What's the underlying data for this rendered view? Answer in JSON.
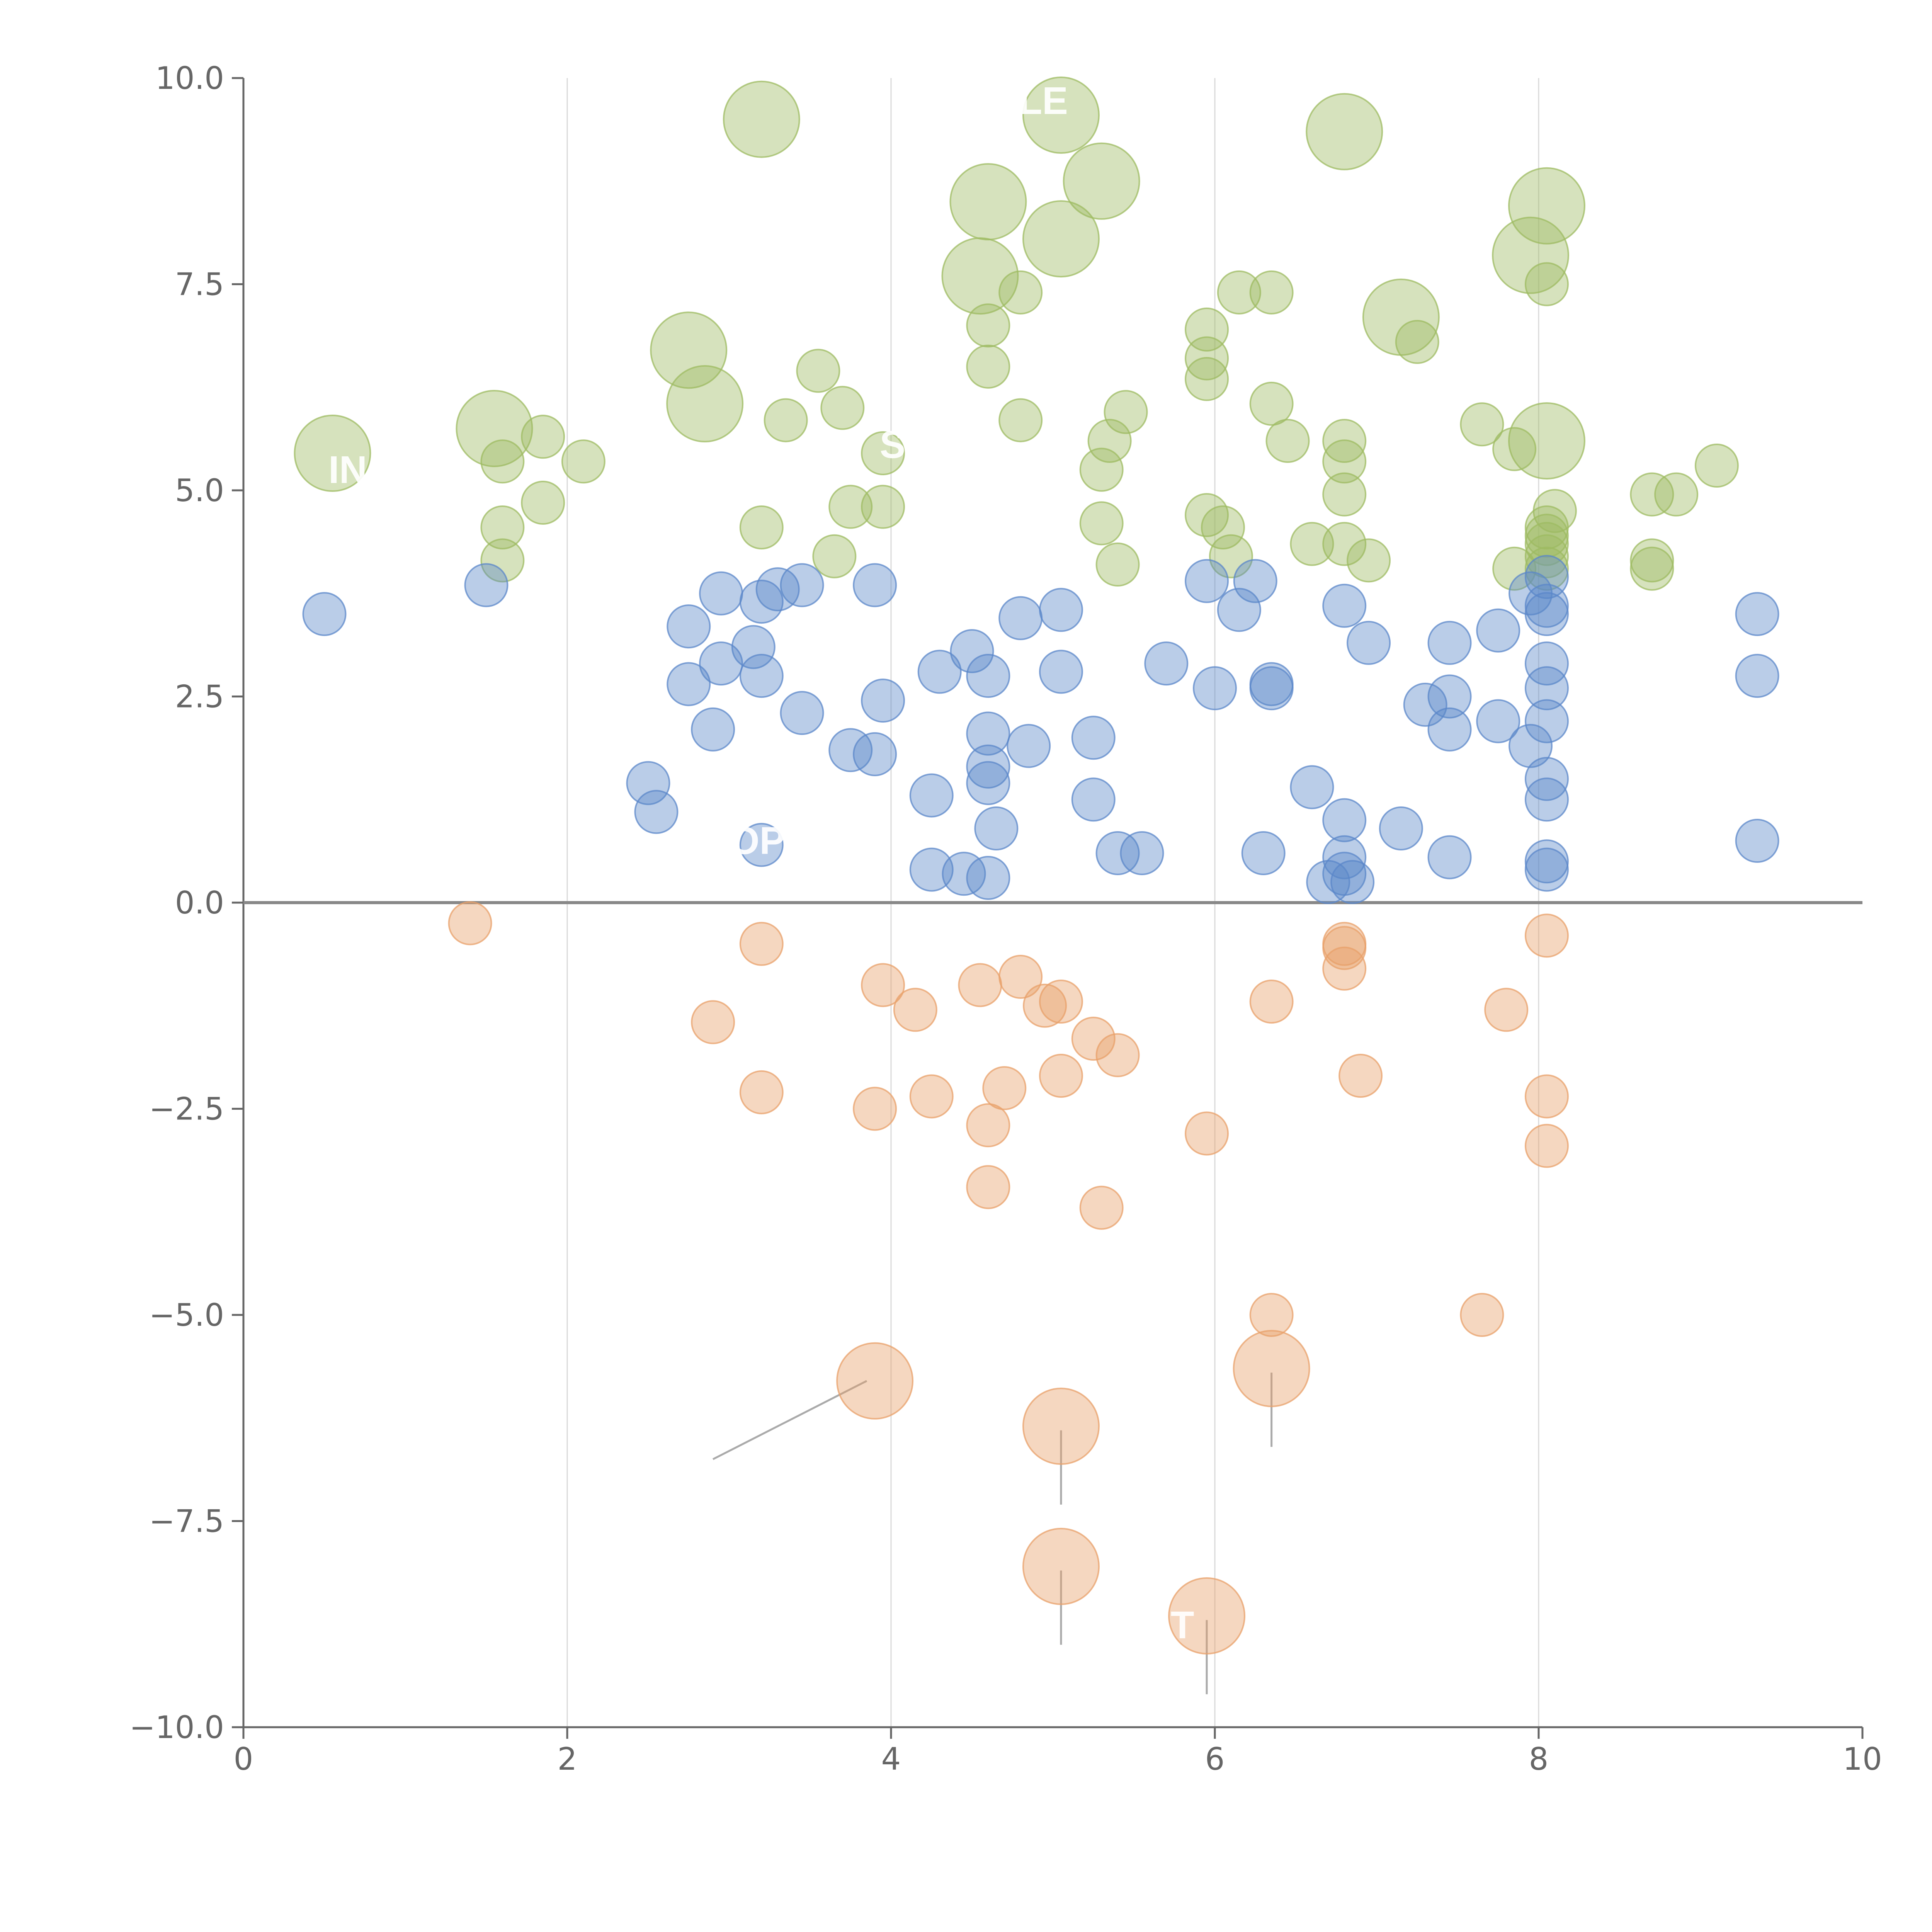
{
  "colors": {
    "positive_high": "#9dbb61",
    "positive": "#5b87c9",
    "negative": "#e8a06a",
    "axis": "#666666",
    "grid": "#d9d9d9",
    "zero_line": "#888888"
  },
  "chart_data": {
    "type": "scatter",
    "title": "",
    "xlabel": "",
    "ylabel": "",
    "xlim": [
      0,
      10
    ],
    "ylim": [
      -10,
      10
    ],
    "x_ticks": [
      "0",
      "2",
      "4",
      "6",
      "8",
      "10"
    ],
    "y_ticks": [
      "10.0",
      "7.5",
      "5.0",
      "2.5",
      "0.0",
      "−2.5",
      "−5.0",
      "−7.5",
      "−10.0"
    ],
    "grid_x": [
      2,
      4,
      6,
      8
    ],
    "zero_line": 0,
    "series": [
      {
        "name": "green",
        "color_key": "positive_high",
        "points": [
          {
            "x": 3.2,
            "y": 9.5,
            "size": "large"
          },
          {
            "x": 5.05,
            "y": 9.55,
            "size": "large"
          },
          {
            "x": 6.8,
            "y": 9.35,
            "size": "large"
          },
          {
            "x": 5.3,
            "y": 8.75,
            "size": "large"
          },
          {
            "x": 4.6,
            "y": 8.5,
            "size": "large"
          },
          {
            "x": 8.05,
            "y": 8.45,
            "size": "large"
          },
          {
            "x": 5.05,
            "y": 8.05,
            "size": "large"
          },
          {
            "x": 7.95,
            "y": 7.85,
            "size": "large"
          },
          {
            "x": 4.55,
            "y": 7.6,
            "size": "large"
          },
          {
            "x": 8.05,
            "y": 7.5,
            "size": "small"
          },
          {
            "x": 4.8,
            "y": 7.4,
            "size": "small"
          },
          {
            "x": 6.15,
            "y": 7.4,
            "size": "small"
          },
          {
            "x": 6.35,
            "y": 7.4,
            "size": "small"
          },
          {
            "x": 7.15,
            "y": 7.1,
            "size": "large"
          },
          {
            "x": 4.6,
            "y": 7.0,
            "size": "small"
          },
          {
            "x": 5.95,
            "y": 6.95,
            "size": "small"
          },
          {
            "x": 7.25,
            "y": 6.8,
            "size": "small"
          },
          {
            "x": 2.75,
            "y": 6.7,
            "size": "large"
          },
          {
            "x": 5.95,
            "y": 6.6,
            "size": "small"
          },
          {
            "x": 4.6,
            "y": 6.5,
            "size": "small"
          },
          {
            "x": 3.55,
            "y": 6.45,
            "size": "small"
          },
          {
            "x": 5.95,
            "y": 6.35,
            "size": "small"
          },
          {
            "x": 2.85,
            "y": 6.05,
            "size": "large"
          },
          {
            "x": 6.35,
            "y": 6.05,
            "size": "small"
          },
          {
            "x": 3.7,
            "y": 6.0,
            "size": "small"
          },
          {
            "x": 5.45,
            "y": 5.95,
            "size": "small"
          },
          {
            "x": 3.35,
            "y": 5.85,
            "size": "small"
          },
          {
            "x": 4.8,
            "y": 5.85,
            "size": "small"
          },
          {
            "x": 7.65,
            "y": 5.8,
            "size": "small"
          },
          {
            "x": 1.55,
            "y": 5.75,
            "size": "large"
          },
          {
            "x": 1.85,
            "y": 5.65,
            "size": "small"
          },
          {
            "x": 5.35,
            "y": 5.6,
            "size": "small"
          },
          {
            "x": 6.45,
            "y": 5.6,
            "size": "small"
          },
          {
            "x": 6.8,
            "y": 5.6,
            "size": "small"
          },
          {
            "x": 8.05,
            "y": 5.6,
            "size": "large"
          },
          {
            "x": 7.85,
            "y": 5.5,
            "size": "small"
          },
          {
            "x": 0.55,
            "y": 5.45,
            "size": "large"
          },
          {
            "x": 3.95,
            "y": 5.45,
            "size": "small"
          },
          {
            "x": 1.6,
            "y": 5.35,
            "size": "small"
          },
          {
            "x": 2.1,
            "y": 5.35,
            "size": "small"
          },
          {
            "x": 6.8,
            "y": 5.35,
            "size": "small"
          },
          {
            "x": 9.1,
            "y": 5.3,
            "size": "small"
          },
          {
            "x": 5.3,
            "y": 5.25,
            "size": "small"
          },
          {
            "x": 6.8,
            "y": 4.95,
            "size": "small"
          },
          {
            "x": 8.7,
            "y": 4.95,
            "size": "small"
          },
          {
            "x": 8.85,
            "y": 4.95,
            "size": "small"
          },
          {
            "x": 1.85,
            "y": 4.85,
            "size": "small"
          },
          {
            "x": 3.75,
            "y": 4.8,
            "size": "small"
          },
          {
            "x": 3.95,
            "y": 4.8,
            "size": "small"
          },
          {
            "x": 8.1,
            "y": 4.75,
            "size": "small"
          },
          {
            "x": 5.95,
            "y": 4.7,
            "size": "small"
          },
          {
            "x": 1.6,
            "y": 4.55,
            "size": "small"
          },
          {
            "x": 3.2,
            "y": 4.55,
            "size": "small"
          },
          {
            "x": 5.3,
            "y": 4.6,
            "size": "small"
          },
          {
            "x": 6.05,
            "y": 4.55,
            "size": "small"
          },
          {
            "x": 8.05,
            "y": 4.55,
            "size": "small"
          },
          {
            "x": 8.05,
            "y": 4.45,
            "size": "small"
          },
          {
            "x": 6.6,
            "y": 4.35,
            "size": "small"
          },
          {
            "x": 6.8,
            "y": 4.35,
            "size": "small"
          },
          {
            "x": 8.05,
            "y": 4.35,
            "size": "small"
          },
          {
            "x": 3.65,
            "y": 4.2,
            "size": "small"
          },
          {
            "x": 6.1,
            "y": 4.2,
            "size": "small"
          },
          {
            "x": 8.05,
            "y": 4.2,
            "size": "small"
          },
          {
            "x": 1.6,
            "y": 4.15,
            "size": "small"
          },
          {
            "x": 6.95,
            "y": 4.15,
            "size": "small"
          },
          {
            "x": 8.7,
            "y": 4.15,
            "size": "small"
          },
          {
            "x": 5.4,
            "y": 4.1,
            "size": "small"
          },
          {
            "x": 7.85,
            "y": 4.05,
            "size": "small"
          },
          {
            "x": 8.05,
            "y": 4.05,
            "size": "small"
          },
          {
            "x": 8.7,
            "y": 4.05,
            "size": "small"
          }
        ]
      },
      {
        "name": "blue",
        "color_key": "positive",
        "points": [
          {
            "x": 8.05,
            "y": 3.95,
            "size": "small"
          },
          {
            "x": 5.95,
            "y": 3.9,
            "size": "small"
          },
          {
            "x": 6.25,
            "y": 3.9,
            "size": "small"
          },
          {
            "x": 3.9,
            "y": 3.85,
            "size": "small"
          },
          {
            "x": 1.5,
            "y": 3.85,
            "size": "small"
          },
          {
            "x": 3.45,
            "y": 3.85,
            "size": "small"
          },
          {
            "x": 3.3,
            "y": 3.8,
            "size": "small"
          },
          {
            "x": 2.95,
            "y": 3.75,
            "size": "small"
          },
          {
            "x": 7.95,
            "y": 3.75,
            "size": "small"
          },
          {
            "x": 3.2,
            "y": 3.65,
            "size": "small"
          },
          {
            "x": 6.8,
            "y": 3.6,
            "size": "small"
          },
          {
            "x": 8.05,
            "y": 3.6,
            "size": "small"
          },
          {
            "x": 6.15,
            "y": 3.55,
            "size": "small"
          },
          {
            "x": 5.05,
            "y": 3.55,
            "size": "small"
          },
          {
            "x": 8.05,
            "y": 3.5,
            "size": "small"
          },
          {
            "x": 9.35,
            "y": 3.5,
            "size": "small"
          },
          {
            "x": 0.5,
            "y": 3.5,
            "size": "small"
          },
          {
            "x": 4.8,
            "y": 3.45,
            "size": "small"
          },
          {
            "x": 2.75,
            "y": 3.35,
            "size": "small"
          },
          {
            "x": 7.75,
            "y": 3.3,
            "size": "small"
          },
          {
            "x": 6.95,
            "y": 3.15,
            "size": "small"
          },
          {
            "x": 7.45,
            "y": 3.15,
            "size": "small"
          },
          {
            "x": 3.15,
            "y": 3.1,
            "size": "small"
          },
          {
            "x": 4.5,
            "y": 3.05,
            "size": "small"
          },
          {
            "x": 2.95,
            "y": 2.9,
            "size": "small"
          },
          {
            "x": 5.7,
            "y": 2.9,
            "size": "small"
          },
          {
            "x": 8.05,
            "y": 2.9,
            "size": "small"
          },
          {
            "x": 4.3,
            "y": 2.8,
            "size": "small"
          },
          {
            "x": 5.05,
            "y": 2.8,
            "size": "small"
          },
          {
            "x": 9.35,
            "y": 2.75,
            "size": "small"
          },
          {
            "x": 3.2,
            "y": 2.75,
            "size": "small"
          },
          {
            "x": 4.6,
            "y": 2.75,
            "size": "small"
          },
          {
            "x": 6.35,
            "y": 2.65,
            "size": "small"
          },
          {
            "x": 2.75,
            "y": 2.65,
            "size": "small"
          },
          {
            "x": 6.0,
            "y": 2.6,
            "size": "small"
          },
          {
            "x": 6.35,
            "y": 2.6,
            "size": "small"
          },
          {
            "x": 8.05,
            "y": 2.6,
            "size": "small"
          },
          {
            "x": 7.45,
            "y": 2.5,
            "size": "small"
          },
          {
            "x": 3.95,
            "y": 2.45,
            "size": "small"
          },
          {
            "x": 7.3,
            "y": 2.4,
            "size": "small"
          },
          {
            "x": 3.45,
            "y": 2.3,
            "size": "small"
          },
          {
            "x": 7.75,
            "y": 2.2,
            "size": "small"
          },
          {
            "x": 8.05,
            "y": 2.2,
            "size": "small"
          },
          {
            "x": 2.9,
            "y": 2.1,
            "size": "small"
          },
          {
            "x": 7.45,
            "y": 2.1,
            "size": "small"
          },
          {
            "x": 4.6,
            "y": 2.05,
            "size": "small"
          },
          {
            "x": 5.25,
            "y": 2.0,
            "size": "small"
          },
          {
            "x": 4.85,
            "y": 1.9,
            "size": "small"
          },
          {
            "x": 7.95,
            "y": 1.9,
            "size": "small"
          },
          {
            "x": 3.75,
            "y": 1.85,
            "size": "small"
          },
          {
            "x": 3.9,
            "y": 1.8,
            "size": "small"
          },
          {
            "x": 4.6,
            "y": 1.65,
            "size": "small"
          },
          {
            "x": 8.05,
            "y": 1.5,
            "size": "small"
          },
          {
            "x": 2.5,
            "y": 1.45,
            "size": "small"
          },
          {
            "x": 4.6,
            "y": 1.45,
            "size": "small"
          },
          {
            "x": 6.6,
            "y": 1.4,
            "size": "small"
          },
          {
            "x": 4.25,
            "y": 1.3,
            "size": "small"
          },
          {
            "x": 5.25,
            "y": 1.25,
            "size": "small"
          },
          {
            "x": 8.05,
            "y": 1.25,
            "size": "small"
          },
          {
            "x": 2.55,
            "y": 1.1,
            "size": "small"
          },
          {
            "x": 6.8,
            "y": 1.0,
            "size": "small"
          },
          {
            "x": 4.65,
            "y": 0.9,
            "size": "small"
          },
          {
            "x": 7.15,
            "y": 0.9,
            "size": "small"
          },
          {
            "x": 9.35,
            "y": 0.75,
            "size": "small"
          },
          {
            "x": 3.2,
            "y": 0.7,
            "size": "small"
          },
          {
            "x": 5.4,
            "y": 0.6,
            "size": "small"
          },
          {
            "x": 5.55,
            "y": 0.6,
            "size": "small"
          },
          {
            "x": 6.3,
            "y": 0.6,
            "size": "small"
          },
          {
            "x": 6.8,
            "y": 0.55,
            "size": "small"
          },
          {
            "x": 7.45,
            "y": 0.55,
            "size": "small"
          },
          {
            "x": 8.05,
            "y": 0.5,
            "size": "small"
          },
          {
            "x": 8.05,
            "y": 0.4,
            "size": "small"
          },
          {
            "x": 4.25,
            "y": 0.4,
            "size": "small"
          },
          {
            "x": 4.45,
            "y": 0.35,
            "size": "small"
          },
          {
            "x": 6.8,
            "y": 0.35,
            "size": "small"
          },
          {
            "x": 4.6,
            "y": 0.3,
            "size": "small"
          },
          {
            "x": 6.7,
            "y": 0.25,
            "size": "small"
          },
          {
            "x": 6.85,
            "y": 0.25,
            "size": "small"
          }
        ]
      },
      {
        "name": "orange",
        "color_key": "negative",
        "points": [
          {
            "x": 1.4,
            "y": -0.25,
            "size": "small"
          },
          {
            "x": 8.05,
            "y": -0.4,
            "size": "small"
          },
          {
            "x": 3.2,
            "y": -0.5,
            "size": "small"
          },
          {
            "x": 6.8,
            "y": -0.5,
            "size": "small"
          },
          {
            "x": 6.8,
            "y": -0.55,
            "size": "small"
          },
          {
            "x": 6.8,
            "y": -0.8,
            "size": "small"
          },
          {
            "x": 4.8,
            "y": -0.9,
            "size": "small"
          },
          {
            "x": 3.95,
            "y": -1.0,
            "size": "small"
          },
          {
            "x": 4.55,
            "y": -1.0,
            "size": "small"
          },
          {
            "x": 6.35,
            "y": -1.2,
            "size": "small"
          },
          {
            "x": 5.05,
            "y": -1.2,
            "size": "small"
          },
          {
            "x": 4.95,
            "y": -1.25,
            "size": "small"
          },
          {
            "x": 4.15,
            "y": -1.3,
            "size": "small"
          },
          {
            "x": 7.8,
            "y": -1.3,
            "size": "small"
          },
          {
            "x": 2.9,
            "y": -1.45,
            "size": "small"
          },
          {
            "x": 5.25,
            "y": -1.65,
            "size": "small"
          },
          {
            "x": 5.4,
            "y": -1.85,
            "size": "small"
          },
          {
            "x": 5.05,
            "y": -2.1,
            "size": "small"
          },
          {
            "x": 6.9,
            "y": -2.1,
            "size": "small"
          },
          {
            "x": 4.7,
            "y": -2.25,
            "size": "small"
          },
          {
            "x": 3.2,
            "y": -2.3,
            "size": "small"
          },
          {
            "x": 4.25,
            "y": -2.35,
            "size": "small"
          },
          {
            "x": 8.05,
            "y": -2.35,
            "size": "small"
          },
          {
            "x": 3.9,
            "y": -2.5,
            "size": "small"
          },
          {
            "x": 4.6,
            "y": -2.7,
            "size": "small"
          },
          {
            "x": 5.95,
            "y": -2.8,
            "size": "small"
          },
          {
            "x": 8.05,
            "y": -2.95,
            "size": "small"
          },
          {
            "x": 4.6,
            "y": -3.45,
            "size": "small"
          },
          {
            "x": 5.3,
            "y": -3.7,
            "size": "small"
          },
          {
            "x": 6.35,
            "y": -5.0,
            "size": "small"
          },
          {
            "x": 7.65,
            "y": -5.0,
            "size": "small"
          },
          {
            "x": 6.35,
            "y": -5.65,
            "size": "large"
          },
          {
            "x": 3.9,
            "y": -5.8,
            "size": "large"
          },
          {
            "x": 5.05,
            "y": -6.35,
            "size": "large"
          },
          {
            "x": 5.05,
            "y": -8.05,
            "size": "large"
          },
          {
            "x": 5.95,
            "y": -8.65,
            "size": "large"
          }
        ]
      }
    ],
    "leader_lines": [
      {
        "x1": 3.85,
        "y1": -5.8,
        "x2": 2.9,
        "y2": -6.75
      },
      {
        "x1": 5.05,
        "y1": -6.4,
        "x2": 5.05,
        "y2": -7.3
      },
      {
        "x1": 6.35,
        "y1": -5.7,
        "x2": 6.35,
        "y2": -6.6
      },
      {
        "x1": 5.05,
        "y1": -8.1,
        "x2": 5.05,
        "y2": -9.0
      },
      {
        "x1": 5.95,
        "y1": -8.7,
        "x2": 5.95,
        "y2": -9.6
      }
    ],
    "annotations": [
      "LE",
      "IN",
      "S",
      "OP",
      "T"
    ]
  }
}
